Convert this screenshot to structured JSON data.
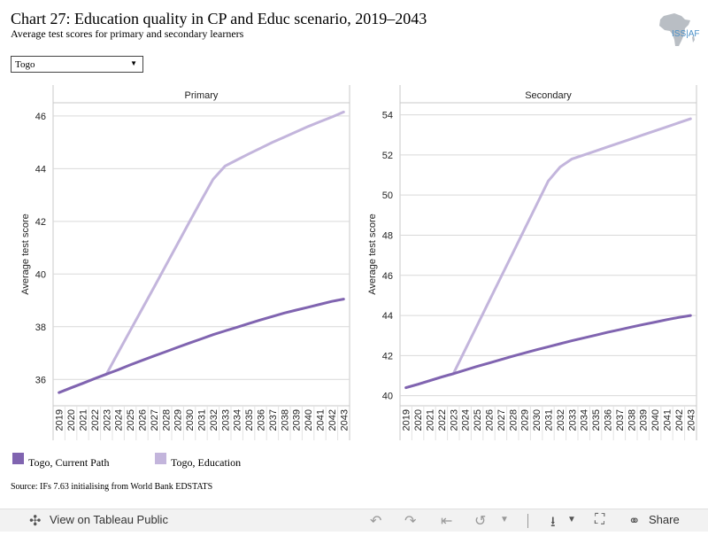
{
  "header": {
    "title": "Chart 27: Education quality in CP and Educ scenario, 2019–2043",
    "subtitle": "Average test scores for primary and secondary learners",
    "logo_text": "ISS|AF"
  },
  "filter": {
    "selected": "Togo"
  },
  "legend": [
    {
      "label": "Togo, Current Path",
      "color": "#8064b0"
    },
    {
      "label": "Togo, Education",
      "color": "#c3b5dc"
    }
  ],
  "source": "Source: IFs 7.63 initialising from World Bank EDSTATS",
  "footer": {
    "view_label": "View on Tableau Public",
    "share_label": "Share"
  },
  "chart_data": [
    {
      "type": "line",
      "title": "Primary",
      "ylabel": "Average test score",
      "x": [
        2019,
        2020,
        2021,
        2022,
        2023,
        2024,
        2025,
        2026,
        2027,
        2028,
        2029,
        2030,
        2031,
        2032,
        2033,
        2034,
        2035,
        2036,
        2037,
        2038,
        2039,
        2040,
        2041,
        2042,
        2043
      ],
      "ylim": [
        35,
        46.5
      ],
      "yticks": [
        36,
        38,
        40,
        42,
        44,
        46
      ],
      "series": [
        {
          "name": "Togo, Current Path",
          "color": "#8064b0",
          "values": [
            35.5,
            35.68,
            35.85,
            36.03,
            36.2,
            36.37,
            36.55,
            36.72,
            36.89,
            37.05,
            37.22,
            37.38,
            37.54,
            37.7,
            37.84,
            37.98,
            38.12,
            38.26,
            38.39,
            38.52,
            38.63,
            38.74,
            38.85,
            38.96,
            39.05
          ]
        },
        {
          "name": "Togo, Education",
          "color": "#c3b5dc",
          "values": [
            35.5,
            35.68,
            35.85,
            36.03,
            36.2,
            37.03,
            37.85,
            38.67,
            39.49,
            40.32,
            41.15,
            41.98,
            42.8,
            43.6,
            44.1,
            44.33,
            44.56,
            44.78,
            45.0,
            45.2,
            45.4,
            45.6,
            45.78,
            45.96,
            46.15
          ]
        }
      ]
    },
    {
      "type": "line",
      "title": "Secondary",
      "ylabel": "Average test score",
      "x": [
        2019,
        2020,
        2021,
        2022,
        2023,
        2024,
        2025,
        2026,
        2027,
        2028,
        2029,
        2030,
        2031,
        2032,
        2033,
        2034,
        2035,
        2036,
        2037,
        2038,
        2039,
        2040,
        2041,
        2042,
        2043
      ],
      "ylim": [
        39.5,
        54.6
      ],
      "yticks": [
        40,
        42,
        44,
        46,
        48,
        50,
        52,
        54
      ],
      "series": [
        {
          "name": "Togo, Current Path",
          "color": "#8064b0",
          "values": [
            40.4,
            40.57,
            40.75,
            40.93,
            41.1,
            41.28,
            41.46,
            41.63,
            41.8,
            41.97,
            42.13,
            42.29,
            42.44,
            42.59,
            42.74,
            42.88,
            43.02,
            43.16,
            43.29,
            43.42,
            43.55,
            43.67,
            43.79,
            43.9,
            44.0
          ]
        },
        {
          "name": "Togo, Education",
          "color": "#c3b5dc",
          "values": [
            40.4,
            40.57,
            40.75,
            40.93,
            41.1,
            42.3,
            43.5,
            44.7,
            45.9,
            47.1,
            48.3,
            49.5,
            50.7,
            51.4,
            51.8,
            52.0,
            52.2,
            52.4,
            52.6,
            52.8,
            53.0,
            53.2,
            53.4,
            53.6,
            53.8
          ]
        }
      ]
    }
  ]
}
